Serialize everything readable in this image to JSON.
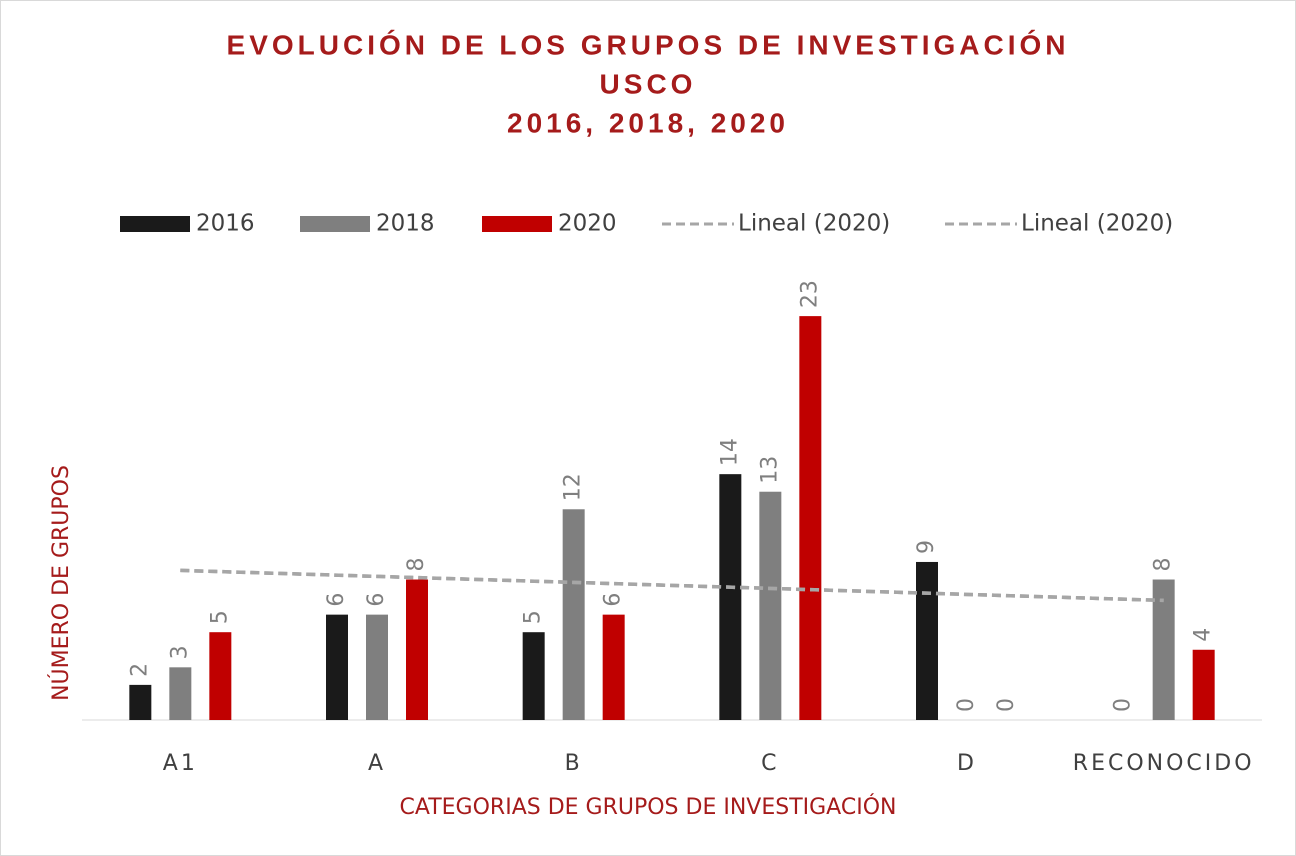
{
  "chart_data": {
    "type": "bar",
    "title": [
      "EVOLUCIÓN DE LOS GRUPOS DE INVESTIGACIÓN",
      "USCO",
      "2016, 2018, 2020"
    ],
    "x_label": "CATEGORIAS DE GRUPOS DE INVESTIGACIÓN",
    "y_label": "NÚMERO DE GRUPOS",
    "categories": [
      "A1",
      "A",
      "B",
      "C",
      "D",
      "RECONOCIDO"
    ],
    "series": [
      {
        "name": "2016",
        "color": "#1a1a1a",
        "values": [
          2,
          6,
          5,
          14,
          9,
          0
        ]
      },
      {
        "name": "2018",
        "color": "#7f7f7f",
        "values": [
          3,
          6,
          12,
          13,
          0,
          8
        ]
      },
      {
        "name": "2020",
        "color": "#c00000",
        "values": [
          5,
          8,
          6,
          23,
          0,
          4
        ]
      }
    ],
    "trendlines": [
      {
        "name": "Lineal (2020)",
        "color": "#a6a6a6",
        "values": [
          8.52,
          6.81
        ]
      },
      {
        "name": "Lineal (2020)",
        "color": "#a6a6a6",
        "values": [
          8.52,
          6.81
        ]
      }
    ],
    "ylim": [
      0,
      25
    ],
    "legend": "top"
  }
}
